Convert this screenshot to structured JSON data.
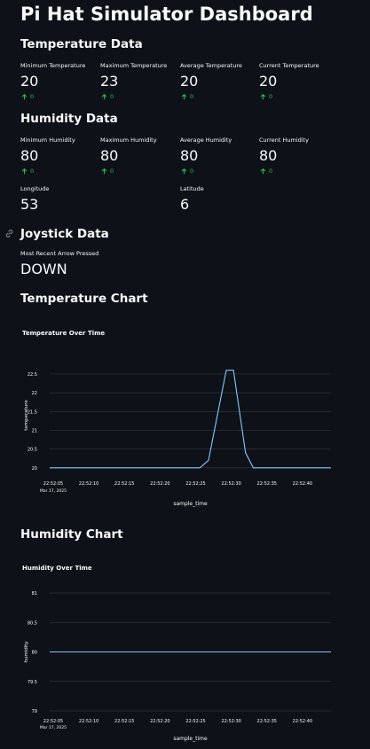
{
  "page": {
    "title": "Pi Hat Simulator Dashboard"
  },
  "temperature": {
    "header": "Temperature Data",
    "metrics": [
      {
        "label": "Minimum Temperature",
        "value": "20",
        "delta": "0"
      },
      {
        "label": "Maximum Temperature",
        "value": "23",
        "delta": "0"
      },
      {
        "label": "Average Temperature",
        "value": "20",
        "delta": "0"
      },
      {
        "label": "Current Temperature",
        "value": "20",
        "delta": "0"
      }
    ]
  },
  "humidity": {
    "header": "Humidity Data",
    "metrics": [
      {
        "label": "Minimum Humidity",
        "value": "80",
        "delta": "0"
      },
      {
        "label": "Maximum Humidity",
        "value": "80",
        "delta": "0"
      },
      {
        "label": "Average Humidity",
        "value": "80",
        "delta": "0"
      },
      {
        "label": "Current Humidity",
        "value": "80",
        "delta": "0"
      }
    ]
  },
  "location": {
    "longitude": {
      "label": "Longitude",
      "value": "53"
    },
    "latitude": {
      "label": "Latitude",
      "value": "6"
    }
  },
  "joystick": {
    "header": "Joystick Data",
    "label": "Most Recent Arrow Pressed",
    "value": "DOWN"
  },
  "colors": {
    "accent_line": "#83c9ff",
    "delta_up": "#21c354",
    "background": "#0e1117",
    "grid": "#31333f"
  },
  "charts": {
    "temperature_header": "Temperature Chart",
    "humidity_header": "Humidity Chart"
  },
  "chart_data": [
    {
      "type": "line",
      "title": "Temperature Over Time",
      "xlabel": "sample_time",
      "ylabel": "temperature",
      "x_ticks": [
        "22:52:05",
        "22:52:10",
        "22:52:15",
        "22:52:20",
        "22:52:25",
        "22:52:30",
        "22:52:35",
        "22:52:40"
      ],
      "x_date": "Mar 17, 2025",
      "x_range": [
        0,
        39.5
      ],
      "y_ticks": [
        "20",
        "20.5",
        "21",
        "21.5",
        "22",
        "22.5"
      ],
      "ylim": [
        19.9,
        22.9
      ],
      "grid": true,
      "points": [
        {
          "x": 0,
          "y": 20
        },
        {
          "x": 21.1,
          "y": 20
        },
        {
          "x": 22.3,
          "y": 20.2
        },
        {
          "x": 24.8,
          "y": 22.6
        },
        {
          "x": 25.8,
          "y": 22.6
        },
        {
          "x": 27.5,
          "y": 20.4
        },
        {
          "x": 28.6,
          "y": 20
        },
        {
          "x": 39.5,
          "y": 20
        }
      ]
    },
    {
      "type": "line",
      "title": "Humidity Over Time",
      "xlabel": "sample_time",
      "ylabel": "humidity",
      "x_ticks": [
        "22:52:05",
        "22:52:10",
        "22:52:15",
        "22:52:20",
        "22:52:25",
        "22:52:30",
        "22:52:35",
        "22:52:40"
      ],
      "x_date": "Mar 17, 2025",
      "x_range": [
        0,
        39.5
      ],
      "y_ticks": [
        "79",
        "79.5",
        "80",
        "80.5",
        "81"
      ],
      "ylim": [
        79,
        81
      ],
      "grid": true,
      "points": [
        {
          "x": 0,
          "y": 80
        },
        {
          "x": 39.5,
          "y": 80
        }
      ]
    }
  ]
}
